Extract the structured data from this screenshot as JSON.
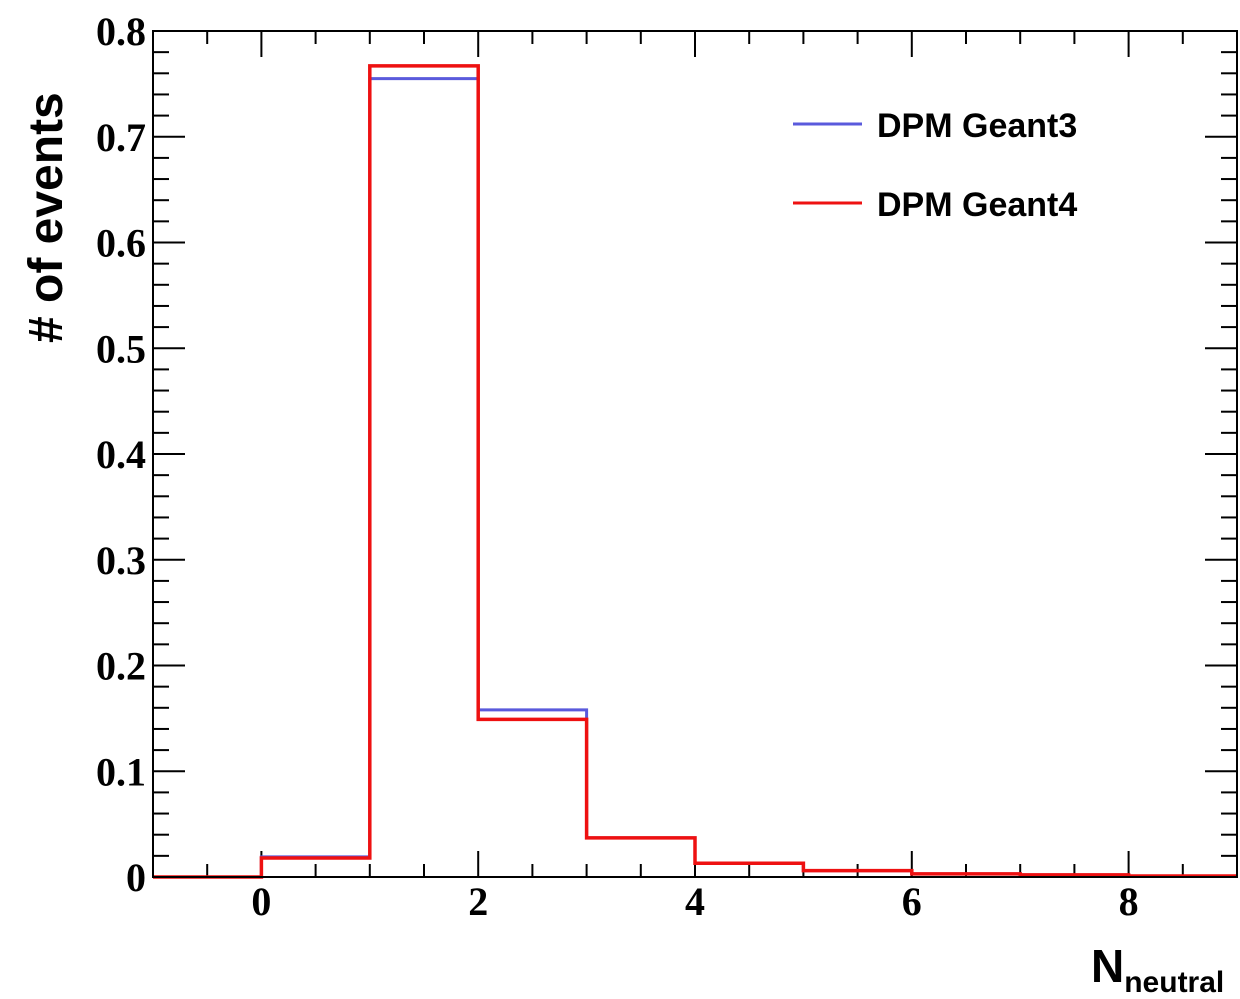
{
  "chart_data": {
    "type": "histogram-step",
    "xlabel": "N",
    "xlabel_subscript": "neutral",
    "ylabel": "# of events",
    "xlim": [
      -1,
      9
    ],
    "ylim": [
      0,
      0.8
    ],
    "x_ticks": [
      0,
      2,
      4,
      6,
      8
    ],
    "x_tick_labels": [
      "0",
      "2",
      "4",
      "6",
      "8"
    ],
    "y_ticks": [
      0,
      0.1,
      0.2,
      0.3,
      0.4,
      0.5,
      0.6,
      0.7,
      0.8
    ],
    "y_tick_labels": [
      "0",
      "0.1",
      "0.2",
      "0.3",
      "0.4",
      "0.5",
      "0.6",
      "0.7",
      "0.8"
    ],
    "bin_edges": [
      -1,
      0,
      1,
      2,
      3,
      4,
      5,
      6,
      7,
      8,
      9
    ],
    "legend_position": "top-right",
    "series": [
      {
        "name": "DPM Geant3",
        "color": "#5a5adc",
        "values": [
          0,
          0.019,
          0.755,
          0.158,
          0.037,
          0.013,
          0.006,
          0.003,
          0.002,
          0.001
        ]
      },
      {
        "name": "DPM Geant4",
        "color": "#ee1111",
        "values": [
          0,
          0.018,
          0.767,
          0.149,
          0.037,
          0.013,
          0.006,
          0.003,
          0.002,
          0.001
        ]
      }
    ]
  }
}
